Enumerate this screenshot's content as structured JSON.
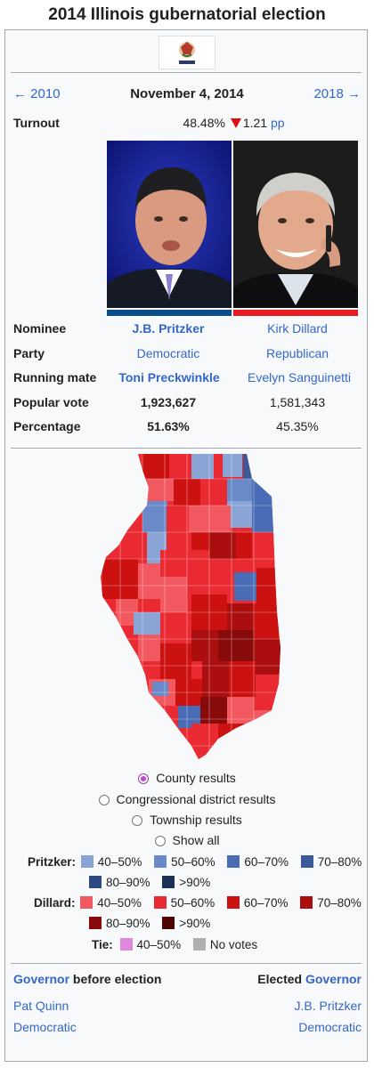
{
  "title": "2014 Illinois gubernatorial election",
  "nav": {
    "prev": "← 2010",
    "date": "November 4, 2014",
    "next": "2018 →"
  },
  "turnout": {
    "label": "Turnout",
    "value": "48.48%",
    "change": "1.21",
    "unit": "pp",
    "direction": "down"
  },
  "candidates": {
    "labels": {
      "nominee": "Nominee",
      "party": "Party",
      "running_mate": "Running mate",
      "popular_vote": "Popular vote",
      "percentage": "Percentage"
    },
    "left": {
      "nominee": "J.B. Pritzker",
      "party": "Democratic",
      "running_mate": "Toni Preckwinkle",
      "popular_vote": "1,923,627",
      "percentage": "51.63%",
      "color": "#0b4f8a"
    },
    "right": {
      "nominee": "Kirk Dillard",
      "party": "Republican",
      "running_mate": "Evelyn Sanguinetti",
      "popular_vote": "1,581,343",
      "percentage": "45.35%",
      "color": "#e81b23"
    }
  },
  "map_options": [
    {
      "label": "County results",
      "selected": true
    },
    {
      "label": "Congressional district results",
      "selected": false
    },
    {
      "label": "Township results",
      "selected": false
    },
    {
      "label": "Show all",
      "selected": false
    }
  ],
  "legend": {
    "pritzker_label": "Pritzker:",
    "pritzker": [
      {
        "label": "40–50%",
        "color": "#8aa4d6"
      },
      {
        "label": "50–60%",
        "color": "#6a89c8"
      },
      {
        "label": "60–70%",
        "color": "#4a6bb5"
      },
      {
        "label": "70–80%",
        "color": "#3a5a99"
      },
      {
        "label": "80–90%",
        "color": "#2c4a80"
      },
      {
        "label": ">90%",
        "color": "#1b2f57"
      }
    ],
    "dillard_label": "Dillard:",
    "dillard": [
      {
        "label": "40–50%",
        "color": "#f2585f"
      },
      {
        "label": "50–60%",
        "color": "#ea2a32"
      },
      {
        "label": "60–70%",
        "color": "#cc1111"
      },
      {
        "label": "70–80%",
        "color": "#aa0e0e"
      },
      {
        "label": "80–90%",
        "color": "#870b0b"
      },
      {
        "label": ">90%",
        "color": "#4f0404"
      }
    ],
    "tie_label": "Tie:",
    "tie": [
      {
        "label": "40–50%",
        "color": "#dd88dd"
      },
      {
        "label": "No votes",
        "color": "#b0b0b0"
      }
    ]
  },
  "footer": {
    "left_link": "Governor",
    "left_rest": " before election",
    "left_name": "Pat Quinn",
    "left_party": "Democratic",
    "right_prefix": "Elected ",
    "right_link": "Governor",
    "right_name": "J.B. Pritzker",
    "right_party": "Democratic"
  }
}
